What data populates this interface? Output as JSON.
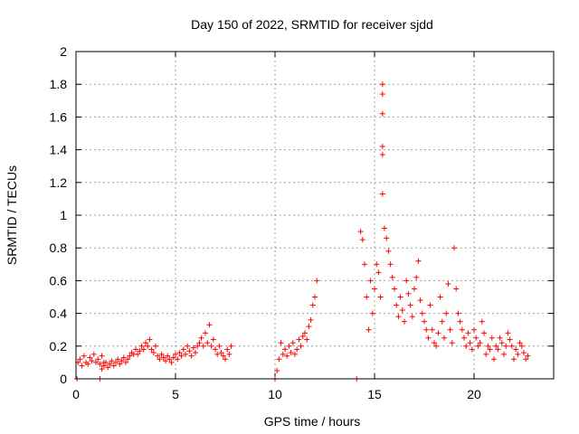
{
  "chart_data": {
    "type": "scatter",
    "title": "Day 150 of 2022, SRMTID for receiver sjdd",
    "xlabel": "GPS time / hours",
    "ylabel": "SRMTID / TECUs",
    "xlim": [
      0,
      24
    ],
    "ylim": [
      0,
      2
    ],
    "x_ticks": [
      0,
      5,
      10,
      15,
      20
    ],
    "x_tick_labels": [
      "0",
      "5",
      "10",
      "15",
      "20"
    ],
    "y_ticks": [
      0,
      0.2,
      0.4,
      0.6,
      0.8,
      1,
      1.2,
      1.4,
      1.6,
      1.8,
      2
    ],
    "y_tick_labels": [
      "0",
      "0.2",
      "0.4",
      "0.6",
      "0.8",
      "1",
      "1.2",
      "1.4",
      "1.6",
      "1.8",
      "2"
    ],
    "grid": true,
    "marker": "plus",
    "color": "#ff0000",
    "series": [
      {
        "name": "SRMTID",
        "x": [
          0.1,
          0.2,
          0.3,
          0.4,
          0.5,
          0.6,
          0.7,
          0.8,
          0.9,
          1.0,
          1.1,
          1.2,
          1.3,
          1.4,
          1.3,
          1.4,
          1.5,
          1.6,
          1.7,
          1.8,
          1.9,
          2.0,
          2.1,
          2.2,
          2.3,
          2.4,
          2.5,
          2.6,
          2.7,
          2.8,
          2.9,
          3.0,
          3.1,
          3.2,
          3.3,
          3.4,
          3.5,
          3.6,
          3.7,
          3.8,
          3.9,
          4.0,
          4.1,
          4.2,
          4.3,
          4.4,
          4.5,
          4.6,
          4.7,
          4.8,
          4.9,
          5.0,
          5.1,
          5.2,
          5.3,
          5.4,
          5.5,
          5.6,
          5.7,
          5.8,
          5.9,
          6.0,
          6.1,
          6.2,
          6.3,
          6.4,
          6.5,
          6.6,
          6.7,
          6.8,
          6.9,
          7.0,
          7.1,
          7.2,
          7.3,
          7.4,
          7.5,
          7.6,
          7.7,
          7.8,
          10.1,
          10.2,
          10.3,
          10.4,
          10.5,
          10.6,
          10.7,
          10.8,
          10.9,
          11.0,
          11.1,
          11.2,
          11.3,
          11.4,
          11.5,
          11.6,
          11.7,
          11.8,
          11.9,
          12.0,
          12.1,
          14.3,
          14.4,
          14.5,
          14.6,
          14.7,
          14.8,
          14.9,
          15.0,
          15.1,
          15.2,
          15.3,
          15.4,
          15.4,
          15.4,
          15.4,
          15.4,
          15.4,
          15.5,
          15.6,
          15.7,
          15.8,
          15.9,
          16.0,
          16.1,
          16.2,
          16.3,
          16.4,
          16.5,
          16.6,
          16.7,
          16.8,
          16.9,
          17.0,
          17.1,
          17.2,
          17.3,
          17.4,
          17.5,
          17.6,
          17.7,
          17.8,
          17.9,
          18.0,
          18.1,
          18.2,
          18.3,
          18.4,
          18.5,
          18.6,
          18.7,
          18.8,
          18.9,
          19.0,
          19.1,
          19.2,
          19.3,
          19.4,
          19.5,
          19.6,
          19.7,
          19.8,
          19.9,
          20.0,
          20.1,
          20.2,
          20.3,
          20.4,
          20.5,
          20.6,
          20.7,
          20.8,
          20.9,
          21.0,
          21.1,
          21.2,
          21.3,
          21.4,
          21.5,
          21.6,
          21.7,
          21.8,
          21.9,
          22.0,
          22.1,
          22.2,
          22.3,
          22.4,
          22.5,
          22.6,
          22.7,
          0.05,
          1.2,
          10.0,
          14.1
        ],
        "y": [
          0.1,
          0.12,
          0.08,
          0.14,
          0.1,
          0.09,
          0.13,
          0.11,
          0.15,
          0.1,
          0.12,
          0.09,
          0.14,
          0.1,
          0.06,
          0.08,
          0.1,
          0.07,
          0.09,
          0.11,
          0.08,
          0.1,
          0.12,
          0.09,
          0.11,
          0.13,
          0.1,
          0.12,
          0.14,
          0.16,
          0.15,
          0.18,
          0.15,
          0.17,
          0.2,
          0.18,
          0.22,
          0.2,
          0.24,
          0.18,
          0.16,
          0.2,
          0.14,
          0.12,
          0.15,
          0.13,
          0.11,
          0.14,
          0.12,
          0.1,
          0.13,
          0.15,
          0.12,
          0.16,
          0.14,
          0.18,
          0.15,
          0.2,
          0.17,
          0.14,
          0.19,
          0.16,
          0.2,
          0.22,
          0.25,
          0.2,
          0.28,
          0.22,
          0.33,
          0.2,
          0.24,
          0.18,
          0.15,
          0.2,
          0.16,
          0.14,
          0.12,
          0.18,
          0.15,
          0.2,
          0.05,
          0.12,
          0.22,
          0.15,
          0.18,
          0.14,
          0.2,
          0.16,
          0.22,
          0.15,
          0.18,
          0.24,
          0.2,
          0.26,
          0.28,
          0.24,
          0.32,
          0.36,
          0.45,
          0.5,
          0.6,
          0.9,
          0.85,
          0.7,
          0.5,
          0.3,
          0.6,
          0.4,
          0.55,
          0.7,
          0.65,
          0.5,
          1.8,
          1.74,
          1.62,
          1.42,
          1.37,
          1.13,
          0.92,
          0.86,
          0.78,
          0.7,
          0.62,
          0.55,
          0.45,
          0.38,
          0.5,
          0.42,
          0.35,
          0.6,
          0.52,
          0.45,
          0.38,
          0.55,
          0.62,
          0.72,
          0.48,
          0.4,
          0.35,
          0.3,
          0.25,
          0.45,
          0.3,
          0.22,
          0.2,
          0.28,
          0.5,
          0.35,
          0.25,
          0.4,
          0.58,
          0.3,
          0.22,
          0.8,
          0.55,
          0.4,
          0.35,
          0.3,
          0.25,
          0.2,
          0.28,
          0.22,
          0.18,
          0.3,
          0.25,
          0.2,
          0.22,
          0.35,
          0.28,
          0.15,
          0.2,
          0.18,
          0.25,
          0.12,
          0.2,
          0.18,
          0.25,
          0.22,
          0.15,
          0.2,
          0.28,
          0.24,
          0.2,
          0.12,
          0.18,
          0.15,
          0.22,
          0.2,
          0.16,
          0.12,
          0.14,
          0.0,
          0.0,
          0.0,
          0.0
        ]
      }
    ]
  }
}
